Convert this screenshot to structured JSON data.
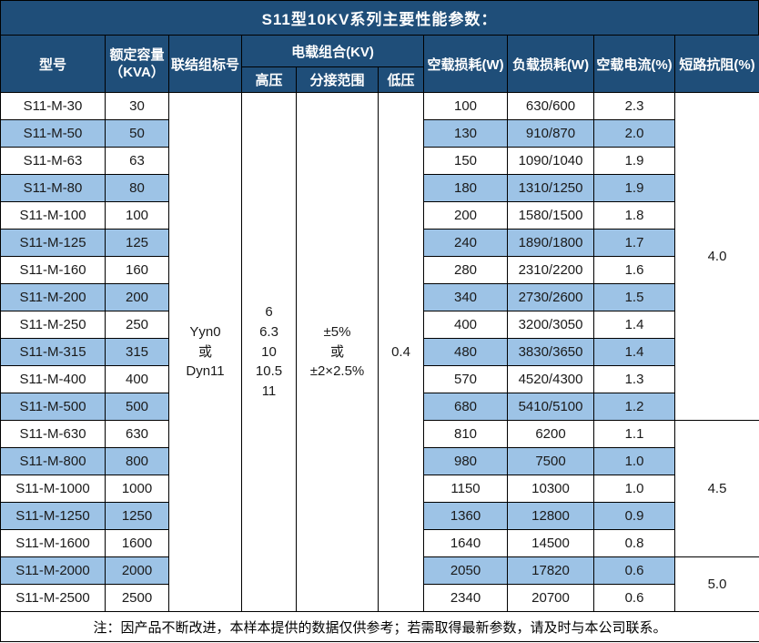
{
  "title": "S11型10KV系列主要性能参数：",
  "table": {
    "headers": {
      "model": "型号",
      "capacity": "额定容量\n（KVA）",
      "connection": "联结组标号",
      "voltage_group": "电载组合(KV)",
      "hv": "高压",
      "tap_range": "分接范围",
      "lv": "低压",
      "no_load_loss": "空载损耗(W)",
      "load_loss": "负载损耗(W)",
      "no_load_current": "空载电流(%)",
      "impedance": "短路抗阻(%)"
    },
    "merged": {
      "connection": "Yyn0\n或\nDyn11",
      "hv": "6\n6.3\n10\n10.5\n11",
      "tap_range": "±5%\n或\n±2×2.5%",
      "lv": "0.4"
    },
    "rows": [
      {
        "model": "S11-M-30",
        "kva": "30",
        "no_load_loss": "100",
        "load_loss": "630/600",
        "no_load_current": "2.3"
      },
      {
        "model": "S11-M-50",
        "kva": "50",
        "no_load_loss": "130",
        "load_loss": "910/870",
        "no_load_current": "2.0"
      },
      {
        "model": "S11-M-63",
        "kva": "63",
        "no_load_loss": "150",
        "load_loss": "1090/1040",
        "no_load_current": "1.9"
      },
      {
        "model": "S11-M-80",
        "kva": "80",
        "no_load_loss": "180",
        "load_loss": "1310/1250",
        "no_load_current": "1.9"
      },
      {
        "model": "S11-M-100",
        "kva": "100",
        "no_load_loss": "200",
        "load_loss": "1580/1500",
        "no_load_current": "1.8"
      },
      {
        "model": "S11-M-125",
        "kva": "125",
        "no_load_loss": "240",
        "load_loss": "1890/1800",
        "no_load_current": "1.7"
      },
      {
        "model": "S11-M-160",
        "kva": "160",
        "no_load_loss": "280",
        "load_loss": "2310/2200",
        "no_load_current": "1.6"
      },
      {
        "model": "S11-M-200",
        "kva": "200",
        "no_load_loss": "340",
        "load_loss": "2730/2600",
        "no_load_current": "1.5"
      },
      {
        "model": "S11-M-250",
        "kva": "250",
        "no_load_loss": "400",
        "load_loss": "3200/3050",
        "no_load_current": "1.4"
      },
      {
        "model": "S11-M-315",
        "kva": "315",
        "no_load_loss": "480",
        "load_loss": "3830/3650",
        "no_load_current": "1.4"
      },
      {
        "model": "S11-M-400",
        "kva": "400",
        "no_load_loss": "570",
        "load_loss": "4520/4300",
        "no_load_current": "1.3"
      },
      {
        "model": "S11-M-500",
        "kva": "500",
        "no_load_loss": "680",
        "load_loss": "5410/5100",
        "no_load_current": "1.2"
      },
      {
        "model": "S11-M-630",
        "kva": "630",
        "no_load_loss": "810",
        "load_loss": "6200",
        "no_load_current": "1.1"
      },
      {
        "model": "S11-M-800",
        "kva": "800",
        "no_load_loss": "980",
        "load_loss": "7500",
        "no_load_current": "1.0"
      },
      {
        "model": "S11-M-1000",
        "kva": "1000",
        "no_load_loss": "1150",
        "load_loss": "10300",
        "no_load_current": "1.0"
      },
      {
        "model": "S11-M-1250",
        "kva": "1250",
        "no_load_loss": "1360",
        "load_loss": "12800",
        "no_load_current": "0.9"
      },
      {
        "model": "S11-M-1600",
        "kva": "1600",
        "no_load_loss": "1640",
        "load_loss": "14500",
        "no_load_current": "0.8"
      },
      {
        "model": "S11-M-2000",
        "kva": "2000",
        "no_load_loss": "2050",
        "load_loss": "17820",
        "no_load_current": "0.6"
      },
      {
        "model": "S11-M-2500",
        "kva": "2500",
        "no_load_loss": "2340",
        "load_loss": "20700",
        "no_load_current": "0.6"
      }
    ],
    "impedance_groups": [
      {
        "value": "4.0",
        "span": 12
      },
      {
        "value": "4.5",
        "span": 5
      },
      {
        "value": "5.0",
        "span": 2
      }
    ]
  },
  "note": "注：因产品不断改进，本样本提供的数据仅供参考；若需取得最新参数，请及时与本公司联系。",
  "colors": {
    "header_bg": "#1F4E79",
    "header_text": "#FFFFFF",
    "row_highlight": "#9DC3E6",
    "border": "#000000"
  }
}
